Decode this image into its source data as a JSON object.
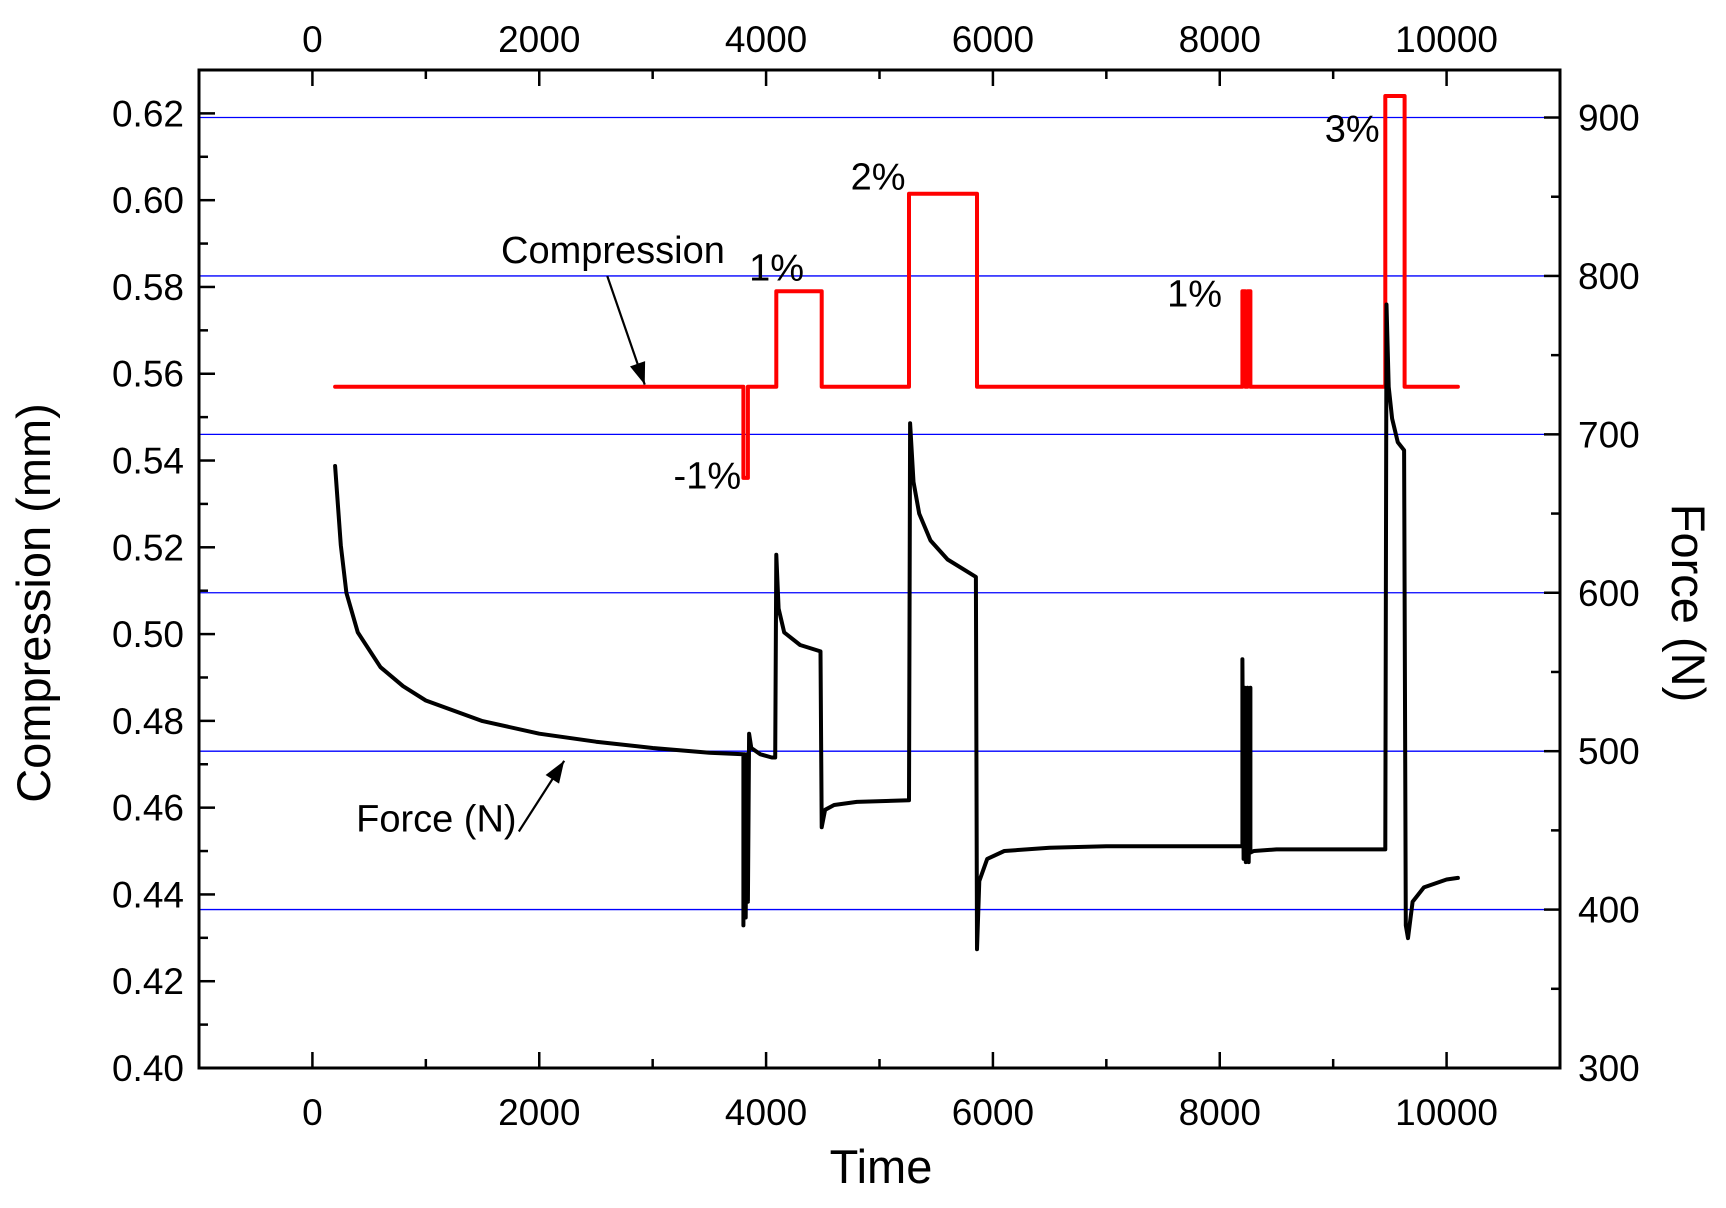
{
  "chart_data": {
    "type": "line",
    "xlabel": "Time",
    "ylabel_left": "Compression (mm)",
    "ylabel_right": "Force (N)",
    "xlim": [
      -1000,
      11000
    ],
    "ylim_left": [
      0.4,
      0.63
    ],
    "ylim_right": [
      300,
      930
    ],
    "x_ticks": [
      0,
      2000,
      4000,
      6000,
      8000,
      10000
    ],
    "x_tick_labels": [
      "0",
      "2000",
      "4000",
      "6000",
      "8000",
      "10000"
    ],
    "y_left_ticks": [
      0.4,
      0.42,
      0.44,
      0.46,
      0.48,
      0.5,
      0.52,
      0.54,
      0.56,
      0.58,
      0.6,
      0.62
    ],
    "y_left_tick_labels": [
      "0.40",
      "0.42",
      "0.44",
      "0.46",
      "0.48",
      "0.50",
      "0.52",
      "0.54",
      "0.56",
      "0.58",
      "0.60",
      "0.62"
    ],
    "y_right_ticks": [
      300,
      400,
      500,
      600,
      700,
      800,
      900
    ],
    "y_right_tick_labels": [
      "300",
      "400",
      "500",
      "600",
      "700",
      "800",
      "900"
    ],
    "grid_lines_right_axis": [
      400,
      500,
      600,
      700,
      800,
      900
    ],
    "grid_color": "#0000ff",
    "series": [
      {
        "name": "Compression",
        "axis": "left",
        "color": "#ff0000",
        "points": [
          [
            200,
            0.557
          ],
          [
            3800,
            0.557
          ],
          [
            3800,
            0.536
          ],
          [
            3840,
            0.536
          ],
          [
            3840,
            0.557
          ],
          [
            4090,
            0.557
          ],
          [
            4090,
            0.579
          ],
          [
            4490,
            0.579
          ],
          [
            4490,
            0.557
          ],
          [
            5260,
            0.557
          ],
          [
            5260,
            0.6015
          ],
          [
            5860,
            0.6015
          ],
          [
            5860,
            0.557
          ],
          [
            8200,
            0.557
          ],
          [
            8200,
            0.579
          ],
          [
            8225,
            0.579
          ],
          [
            8225,
            0.557
          ],
          [
            8245,
            0.557
          ],
          [
            8245,
            0.579
          ],
          [
            8270,
            0.579
          ],
          [
            8270,
            0.557
          ],
          [
            9460,
            0.557
          ],
          [
            9460,
            0.624
          ],
          [
            9630,
            0.624
          ],
          [
            9630,
            0.557
          ],
          [
            10100,
            0.557
          ]
        ]
      },
      {
        "name": "Force (N)",
        "axis": "right",
        "color": "#000000",
        "points": [
          [
            200,
            680
          ],
          [
            250,
            630
          ],
          [
            300,
            600
          ],
          [
            400,
            575
          ],
          [
            600,
            553
          ],
          [
            800,
            541
          ],
          [
            1000,
            532
          ],
          [
            1500,
            519
          ],
          [
            2000,
            511
          ],
          [
            2500,
            506
          ],
          [
            3000,
            502
          ],
          [
            3500,
            499
          ],
          [
            3800,
            498
          ],
          [
            3800,
            390
          ],
          [
            3810,
            498
          ],
          [
            3820,
            395
          ],
          [
            3830,
            498
          ],
          [
            3840,
            405
          ],
          [
            3850,
            511
          ],
          [
            3870,
            502
          ],
          [
            3950,
            498
          ],
          [
            4050,
            496
          ],
          [
            4080,
            496
          ],
          [
            4090,
            624
          ],
          [
            4110,
            590
          ],
          [
            4160,
            575
          ],
          [
            4300,
            567
          ],
          [
            4480,
            563
          ],
          [
            4490,
            452
          ],
          [
            4520,
            463
          ],
          [
            4600,
            466
          ],
          [
            4800,
            468
          ],
          [
            5260,
            469
          ],
          [
            5270,
            707
          ],
          [
            5300,
            670
          ],
          [
            5350,
            650
          ],
          [
            5450,
            633
          ],
          [
            5600,
            621
          ],
          [
            5850,
            610
          ],
          [
            5860,
            375
          ],
          [
            5880,
            418
          ],
          [
            5950,
            432
          ],
          [
            6100,
            437
          ],
          [
            6500,
            439
          ],
          [
            7000,
            440
          ],
          [
            7500,
            440
          ],
          [
            8200,
            440
          ],
          [
            8200,
            558
          ],
          [
            8210,
            432
          ],
          [
            8220,
            540
          ],
          [
            8230,
            430
          ],
          [
            8245,
            540
          ],
          [
            8255,
            430
          ],
          [
            8270,
            540
          ],
          [
            8270,
            436
          ],
          [
            8300,
            437
          ],
          [
            8500,
            438
          ],
          [
            9000,
            438
          ],
          [
            9460,
            438
          ],
          [
            9470,
            782
          ],
          [
            9490,
            730
          ],
          [
            9520,
            710
          ],
          [
            9570,
            695
          ],
          [
            9625,
            690
          ],
          [
            9640,
            390
          ],
          [
            9660,
            382
          ],
          [
            9700,
            405
          ],
          [
            9800,
            414
          ],
          [
            10000,
            419
          ],
          [
            10100,
            420
          ]
        ]
      }
    ],
    "annotations": [
      {
        "text": "Compression",
        "x": 2650,
        "y": 0.5855,
        "anchor": "middle",
        "axis": "left"
      },
      {
        "text": "1%",
        "x": 3850,
        "y": 0.5815,
        "anchor": "start",
        "axis": "left"
      },
      {
        "text": "2%",
        "x": 5230,
        "y": 0.6025,
        "anchor": "end",
        "axis": "left"
      },
      {
        "text": "1%",
        "x": 8020,
        "y": 0.5755,
        "anchor": "end",
        "axis": "left"
      },
      {
        "text": "3%",
        "x": 9410,
        "y": 0.6135,
        "anchor": "end",
        "axis": "left"
      },
      {
        "text": "-1%",
        "x": 3780,
        "y": 0.5335,
        "anchor": "end",
        "axis": "left"
      },
      {
        "text": "Force (N)",
        "x": 1800,
        "y": 0.4545,
        "anchor": "end",
        "axis": "left"
      }
    ],
    "arrows": [
      {
        "from": [
          2600,
          0.5825
        ],
        "to": [
          2930,
          0.5575
        ],
        "axis": "left"
      },
      {
        "from": [
          1820,
          0.4545
        ],
        "to": [
          2220,
          0.4708
        ],
        "axis": "left"
      }
    ]
  }
}
